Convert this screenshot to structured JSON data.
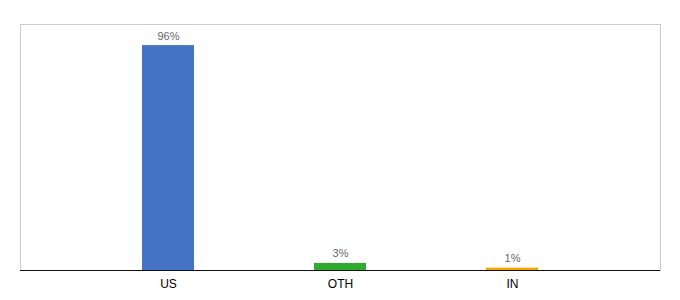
{
  "chart_data": {
    "type": "bar",
    "categories": [
      "US",
      "OTH",
      "IN"
    ],
    "values": [
      96,
      3,
      1
    ],
    "value_labels": [
      "96%",
      "3%",
      "1%"
    ],
    "colors": [
      "#4472c4",
      "#2eaa2e",
      "#f0a500"
    ],
    "ylim": [
      0,
      105
    ],
    "data_labels": true,
    "tick_labels": "x",
    "grid": false
  }
}
